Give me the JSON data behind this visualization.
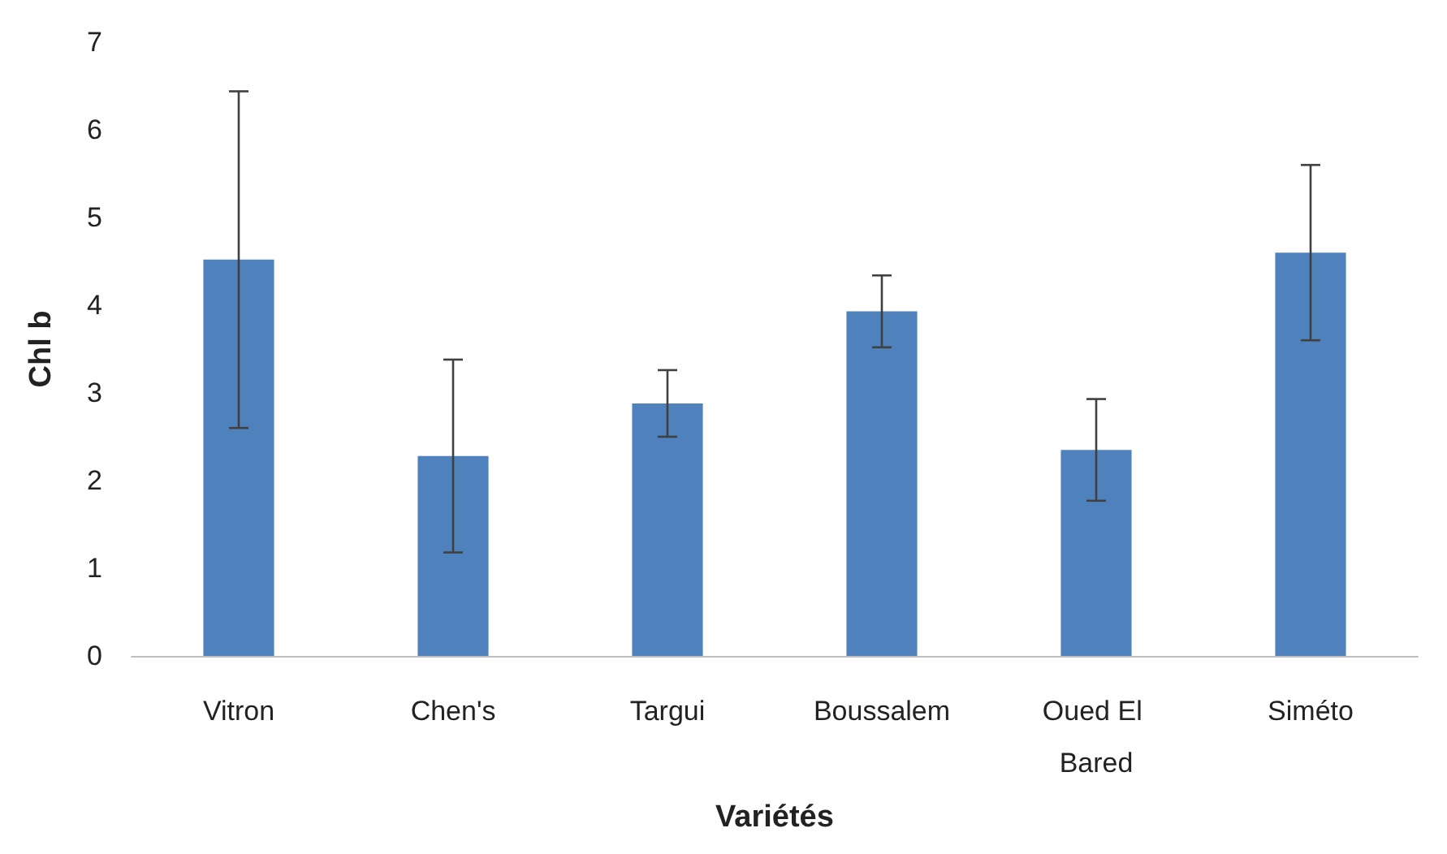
{
  "chart_data": {
    "type": "bar",
    "xlabel": "Variétés",
    "ylabel": "Chl b",
    "categories": [
      "Vitron",
      "Chen's",
      "Targui",
      "Boussalem",
      "Oued El Bared",
      "Siméto"
    ],
    "values": [
      4.52,
      2.28,
      2.88,
      3.93,
      2.35,
      4.6
    ],
    "errors": [
      1.92,
      1.1,
      0.38,
      0.41,
      0.58,
      1.0
    ],
    "color": "#4f81bd",
    "ylim": [
      0,
      7
    ],
    "yticks": [
      0,
      1,
      2,
      3,
      4,
      5,
      6,
      7
    ],
    "grid": false
  }
}
